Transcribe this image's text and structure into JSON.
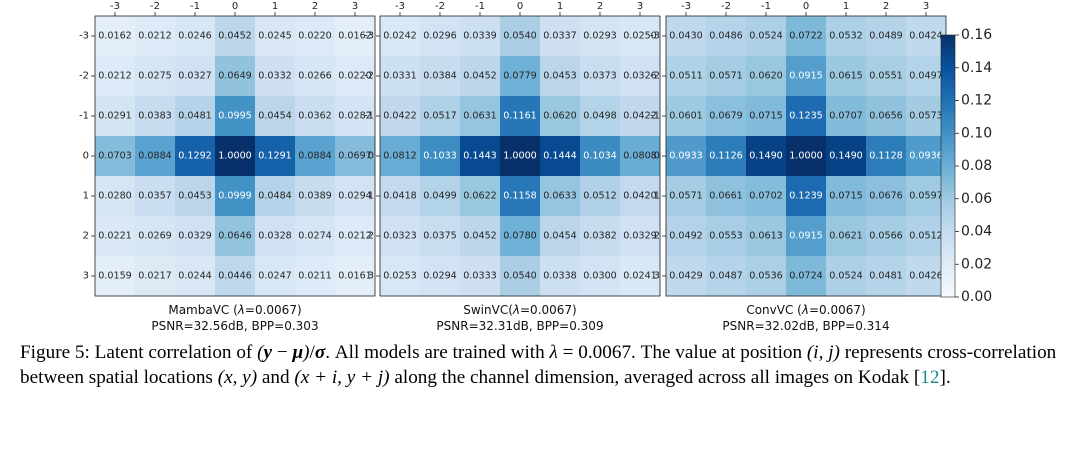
{
  "chart_data": [
    {
      "type": "heatmap",
      "title": "MambaVC (λ=0.0067)",
      "title_prefix": "MambaVC (",
      "title_lambda": "λ",
      "title_suffix": "=0.0067)",
      "subtitle": "PSNR=32.56dB, BPP=0.303",
      "x_ticks": [
        "-3",
        "-2",
        "-1",
        "0",
        "1",
        "2",
        "3"
      ],
      "y_ticks": [
        "-3",
        "-2",
        "-1",
        "0",
        "1",
        "2",
        "3"
      ],
      "values": [
        [
          "0.0162",
          "0.0212",
          "0.0246",
          "0.0452",
          "0.0245",
          "0.0220",
          "0.0162"
        ],
        [
          "0.0212",
          "0.0275",
          "0.0327",
          "0.0649",
          "0.0332",
          "0.0266",
          "0.0220"
        ],
        [
          "0.0291",
          "0.0383",
          "0.0481",
          "0.0995",
          "0.0454",
          "0.0362",
          "0.0282"
        ],
        [
          "0.0703",
          "0.0884",
          "0.1292",
          "1.0000",
          "0.1291",
          "0.0884",
          "0.0697"
        ],
        [
          "0.0280",
          "0.0357",
          "0.0453",
          "0.0999",
          "0.0484",
          "0.0389",
          "0.0294"
        ],
        [
          "0.0221",
          "0.0269",
          "0.0329",
          "0.0646",
          "0.0328",
          "0.0274",
          "0.0212"
        ],
        [
          "0.0159",
          "0.0217",
          "0.0244",
          "0.0446",
          "0.0247",
          "0.0211",
          "0.0161"
        ]
      ]
    },
    {
      "type": "heatmap",
      "title": "SwinVC(λ=0.0067)",
      "title_prefix": "SwinVC(",
      "title_lambda": "λ",
      "title_suffix": "=0.0067)",
      "subtitle": "PSNR=32.31dB, BPP=0.309",
      "x_ticks": [
        "-3",
        "-2",
        "-1",
        "0",
        "1",
        "2",
        "3"
      ],
      "y_ticks": [
        "-3",
        "-2",
        "-1",
        "0",
        "1",
        "2",
        "3"
      ],
      "values": [
        [
          "0.0242",
          "0.0296",
          "0.0339",
          "0.0540",
          "0.0337",
          "0.0293",
          "0.0250"
        ],
        [
          "0.0331",
          "0.0384",
          "0.0452",
          "0.0779",
          "0.0453",
          "0.0373",
          "0.0326"
        ],
        [
          "0.0422",
          "0.0517",
          "0.0631",
          "0.1161",
          "0.0620",
          "0.0498",
          "0.0422"
        ],
        [
          "0.0812",
          "0.1033",
          "0.1443",
          "1.0000",
          "0.1444",
          "0.1034",
          "0.0808"
        ],
        [
          "0.0418",
          "0.0499",
          "0.0622",
          "0.1158",
          "0.0633",
          "0.0512",
          "0.0420"
        ],
        [
          "0.0323",
          "0.0375",
          "0.0452",
          "0.0780",
          "0.0454",
          "0.0382",
          "0.0329"
        ],
        [
          "0.0253",
          "0.0294",
          "0.0333",
          "0.0540",
          "0.0338",
          "0.0300",
          "0.0241"
        ]
      ]
    },
    {
      "type": "heatmap",
      "title": "ConvVC (λ=0.0067)",
      "title_prefix": "ConvVC (",
      "title_lambda": "λ",
      "title_suffix": "=0.0067)",
      "subtitle": "PSNR=32.02dB, BPP=0.314",
      "x_ticks": [
        "-3",
        "-2",
        "-1",
        "0",
        "1",
        "2",
        "3"
      ],
      "y_ticks": [
        "-3",
        "-2",
        "-1",
        "0",
        "1",
        "2",
        "3"
      ],
      "values": [
        [
          "0.0430",
          "0.0486",
          "0.0524",
          "0.0722",
          "0.0532",
          "0.0489",
          "0.0424"
        ],
        [
          "0.0511",
          "0.0571",
          "0.0620",
          "0.0915",
          "0.0615",
          "0.0551",
          "0.0497"
        ],
        [
          "0.0601",
          "0.0679",
          "0.0715",
          "0.1235",
          "0.0707",
          "0.0656",
          "0.0573"
        ],
        [
          "0.0933",
          "0.1126",
          "0.1490",
          "1.0000",
          "0.1490",
          "0.1128",
          "0.0936"
        ],
        [
          "0.0571",
          "0.0661",
          "0.0702",
          "0.1239",
          "0.0715",
          "0.0676",
          "0.0597"
        ],
        [
          "0.0492",
          "0.0553",
          "0.0613",
          "0.0915",
          "0.0621",
          "0.0566",
          "0.0512"
        ],
        [
          "0.0429",
          "0.0487",
          "0.0536",
          "0.0724",
          "0.0524",
          "0.0481",
          "0.0426"
        ]
      ]
    }
  ],
  "colorbar": {
    "ticks": [
      "0.00",
      "0.02",
      "0.04",
      "0.06",
      "0.08",
      "0.10",
      "0.12",
      "0.14",
      "0.16"
    ],
    "vmin": 0.0,
    "vmax": 0.16,
    "colors": [
      "#f7fbff",
      "#deebf7",
      "#c6dbef",
      "#9ecae1",
      "#6baed6",
      "#4292c6",
      "#2171b5",
      "#08519c",
      "#08306b"
    ]
  },
  "caption": {
    "label": "Figure 5: Latent correlation of ",
    "expr_open": "(",
    "expr_y": "y",
    "expr_minus": " − ",
    "expr_mu": "μ",
    "expr_close": ")",
    "expr_slash": "/",
    "expr_sigma": "σ",
    "text_1": ". All models are trained with ",
    "lambda_sym": "λ",
    "lambda_val": " = 0.0067",
    "text_2": ". The value at position ",
    "pos_ij": "(i, j)",
    "text_3": " represents cross-correlation between spatial locations ",
    "pos_xy": "(x, y)",
    "text_and": " and ",
    "pos_shift": "(x + i, y + j)",
    "text_4": " along the channel dimension, averaged across all images on Kodak [",
    "ref": "12",
    "text_5": "]."
  }
}
